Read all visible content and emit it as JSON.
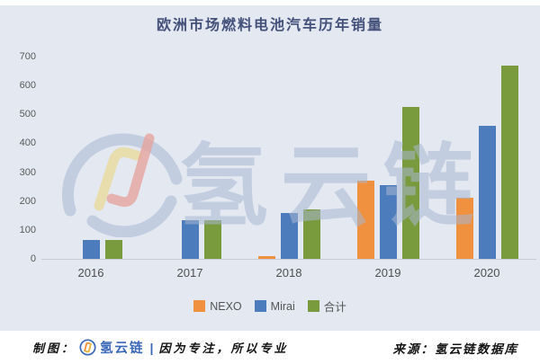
{
  "title": "欧洲市场燃料电池汽车历年销量",
  "colors": {
    "background": "#E3E8F1",
    "title_text": "#44517A",
    "axis_text": "#595959",
    "axis_line": "#C6CCD8",
    "nexo_orange": "#F0913F",
    "mirai_blue": "#4C7CBB",
    "total_green": "#7A9B3D",
    "watermark": "#A8B6D1",
    "brand_blue": "#3A67B8"
  },
  "chart_data": {
    "type": "bar",
    "title": "欧洲市场燃料电池汽车历年销量",
    "categories": [
      "2016",
      "2017",
      "2018",
      "2019",
      "2020"
    ],
    "series": [
      {
        "name": "NEXO",
        "color": "#F0913F",
        "values": [
          0,
          0,
          10,
          270,
          210
        ]
      },
      {
        "name": "Mirai",
        "color": "#4C7CBB",
        "values": [
          65,
          135,
          160,
          255,
          460
        ]
      },
      {
        "name": "合计",
        "color": "#7A9B3D",
        "values": [
          65,
          135,
          170,
          525,
          670
        ]
      }
    ],
    "xlabel": "",
    "ylabel": "",
    "ylim": [
      0,
      700
    ],
    "yticks": [
      0,
      100,
      200,
      300,
      400,
      500,
      600,
      700
    ],
    "grid": false,
    "legend_position": "bottom"
  },
  "watermark": {
    "text": "氢云链"
  },
  "footer": {
    "made_by_label": "制图：",
    "brand": "氢云链",
    "separator": "|",
    "slogan": "因为专注，所以专业",
    "source": "来源：氢云链数据库"
  }
}
